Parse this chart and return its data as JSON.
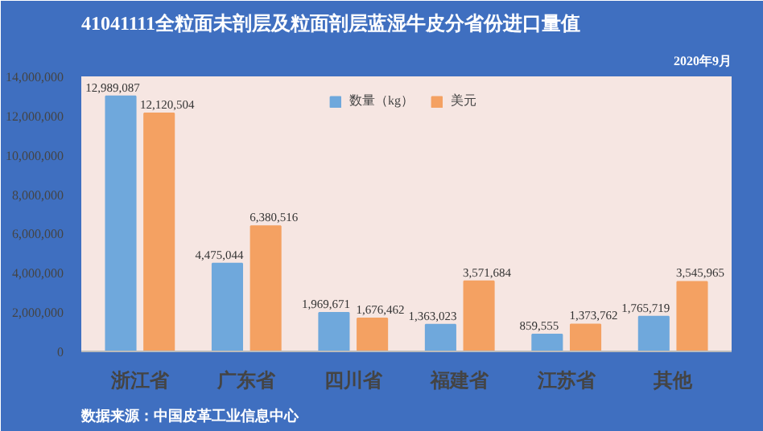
{
  "chart_data": {
    "type": "bar",
    "title": "41041111全粒面未剖层及粒面剖层蓝湿牛皮分省份进口量值",
    "subtitle": "2020年9月",
    "categories": [
      "浙江省",
      "广东省",
      "四川省",
      "福建省",
      "江苏省",
      "其他"
    ],
    "series": [
      {
        "name": "数量（kg）",
        "color": "#6fa8dc",
        "values": [
          12989087,
          4475044,
          1969671,
          1363023,
          859555,
          1765719
        ],
        "value_labels": [
          "12,989,087",
          "4,475,044",
          "1,969,671",
          "1,363,023",
          "859,555",
          "1,765,719"
        ]
      },
      {
        "name": "美元",
        "color": "#f4a162",
        "values": [
          12120504,
          6380516,
          1676462,
          3571684,
          1373762,
          3545965
        ],
        "value_labels": [
          "12,120,504",
          "6,380,516",
          "1,676,462",
          "3,571,684",
          "1,373,762",
          "3,545,965"
        ]
      }
    ],
    "ylim": [
      0,
      14000000
    ],
    "yticks": [
      {
        "value": 0,
        "label": "0"
      },
      {
        "value": 2000000,
        "label": "2,000,000"
      },
      {
        "value": 4000000,
        "label": "4,000,000"
      },
      {
        "value": 6000000,
        "label": "6,000,000"
      },
      {
        "value": 8000000,
        "label": "8,000,000"
      },
      {
        "value": 10000000,
        "label": "10,000,000"
      },
      {
        "value": 12000000,
        "label": "12,000,000"
      },
      {
        "value": 14000000,
        "label": "14,000,000"
      }
    ],
    "grid": false,
    "legend": "top",
    "annotations": [
      "数据来源：中国皮革工业信息中心"
    ]
  }
}
